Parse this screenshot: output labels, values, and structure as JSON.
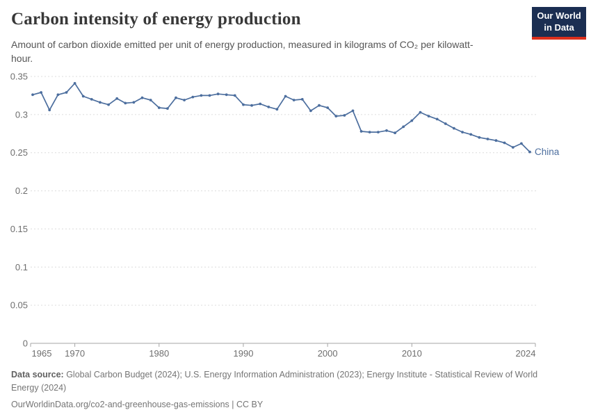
{
  "header": {
    "title": "Carbon intensity of energy production",
    "subtitle": "Amount of carbon dioxide emitted per unit of energy production, measured in kilograms of CO₂ per kilowatt-hour.",
    "logo": {
      "line1": "Our World",
      "line2": "in Data",
      "bg_color": "#1b2e52",
      "stripe_color": "#dc2f1c"
    }
  },
  "chart_data": {
    "type": "line",
    "title": "Carbon intensity of energy production",
    "xlabel": "",
    "ylabel": "kilograms of CO₂ per kilowatt-hour",
    "xlim": [
      1965,
      2024
    ],
    "ylim": [
      0,
      0.35
    ],
    "grid": "horizontal-dashed",
    "legend_position": "end-of-line-label",
    "x_ticks": [
      1965,
      1970,
      1980,
      1990,
      2000,
      2010,
      2024
    ],
    "y_ticks": [
      0,
      0.05,
      0.1,
      0.15,
      0.2,
      0.25,
      0.3,
      0.35
    ],
    "y_tick_labels": [
      "0",
      "0.05",
      "0.1",
      "0.15",
      "0.2",
      "0.25",
      "0.3",
      "0.35"
    ],
    "series": [
      {
        "name": "China",
        "color": "#4c6e9e",
        "x": [
          1965,
          1966,
          1967,
          1968,
          1969,
          1970,
          1971,
          1972,
          1973,
          1974,
          1975,
          1976,
          1977,
          1978,
          1979,
          1980,
          1981,
          1982,
          1983,
          1984,
          1985,
          1986,
          1987,
          1988,
          1989,
          1990,
          1991,
          1992,
          1993,
          1994,
          1995,
          1996,
          1997,
          1998,
          1999,
          2000,
          2001,
          2002,
          2003,
          2004,
          2005,
          2006,
          2007,
          2008,
          2009,
          2010,
          2011,
          2012,
          2013,
          2014,
          2015,
          2016,
          2017,
          2018,
          2019,
          2020,
          2021,
          2022,
          2023,
          2024
        ],
        "values": [
          0.326,
          0.329,
          0.306,
          0.326,
          0.329,
          0.341,
          0.324,
          0.32,
          0.316,
          0.313,
          0.321,
          0.315,
          0.316,
          0.322,
          0.319,
          0.309,
          0.308,
          0.322,
          0.319,
          0.323,
          0.325,
          0.325,
          0.327,
          0.326,
          0.325,
          0.313,
          0.312,
          0.314,
          0.31,
          0.307,
          0.324,
          0.319,
          0.32,
          0.305,
          0.312,
          0.309,
          0.298,
          0.299,
          0.305,
          0.278,
          0.277,
          0.277,
          0.279,
          0.276,
          0.284,
          0.292,
          0.303,
          0.298,
          0.294,
          0.288,
          0.282,
          0.277,
          0.274,
          0.27,
          0.268,
          0.266,
          0.263,
          0.257,
          0.262,
          0.251
        ]
      }
    ]
  },
  "footer": {
    "datasource_label": "Data source:",
    "datasource_text": " Global Carbon Budget (2024); U.S. Energy Information Administration (2023); Energy Institute - Statistical Review of World Energy (2024)",
    "link_line": "OurWorldinData.org/co2-and-greenhouse-gas-emissions | CC BY"
  },
  "colors": {
    "line": "#4c6e9e",
    "axis_text": "#6e6e6e",
    "grid": "#dcdcdc",
    "axis_line": "#a5a5a5",
    "title": "#383838",
    "subtitle": "#555555"
  }
}
